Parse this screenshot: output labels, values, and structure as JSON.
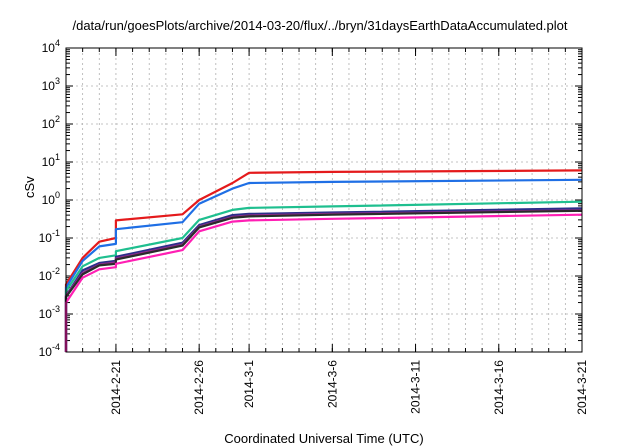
{
  "chart_data": {
    "type": "line",
    "title": "/data/run/goesPlots/archive/2014-03-20/flux/../bryn/31daysEarthDataAccumulated.plot",
    "xlabel": "Coordinated Universal Time (UTC)",
    "ylabel": "cSv",
    "yscale": "log",
    "ylim": [
      0.0001,
      10000
    ],
    "yticks": [
      {
        "base": "10",
        "exp": "-4",
        "value": 0.0001
      },
      {
        "base": "10",
        "exp": "-3",
        "value": 0.001
      },
      {
        "base": "10",
        "exp": "-2",
        "value": 0.01
      },
      {
        "base": "10",
        "exp": "-1",
        "value": 0.1
      },
      {
        "base": "10",
        "exp": "0",
        "value": 1
      },
      {
        "base": "10",
        "exp": "1",
        "value": 10
      },
      {
        "base": "10",
        "exp": "2",
        "value": 100
      },
      {
        "base": "10",
        "exp": "3",
        "value": 1000
      },
      {
        "base": "10",
        "exp": "4",
        "value": 10000
      }
    ],
    "xlim": [
      "2014-02-18",
      "2014-03-21"
    ],
    "xticks": [
      "2014-2-21",
      "2014-2-26",
      "2014-3-1",
      "2014-3-6",
      "2014-3-11",
      "2014-3-16",
      "2014-3-21"
    ],
    "grid": true,
    "series": [
      {
        "color": "#e41a1c",
        "x": [
          "2014-02-18",
          "2014-02-18",
          "2014-02-19",
          "2014-02-20",
          "2014-02-21",
          "2014-02-21",
          "2014-02-25",
          "2014-02-26",
          "2014-02-28",
          "2014-03-01",
          "2014-03-06",
          "2014-03-21"
        ],
        "values": [
          0.0001,
          0.006,
          0.03,
          0.08,
          0.1,
          0.29,
          0.42,
          1.0,
          2.8,
          5.2,
          5.5,
          6.0
        ]
      },
      {
        "color": "#1f6fe5",
        "x": [
          "2014-02-18",
          "2014-02-18",
          "2014-02-19",
          "2014-02-20",
          "2014-02-21",
          "2014-02-21",
          "2014-02-25",
          "2014-02-26",
          "2014-02-28",
          "2014-03-01",
          "2014-03-06",
          "2014-03-21"
        ],
        "values": [
          0.0001,
          0.005,
          0.025,
          0.06,
          0.07,
          0.17,
          0.26,
          0.8,
          2.0,
          2.8,
          3.0,
          3.4
        ]
      },
      {
        "color": "#1fbf8f",
        "x": [
          "2014-02-18",
          "2014-02-18",
          "2014-02-19",
          "2014-02-20",
          "2014-02-21",
          "2014-02-21",
          "2014-02-25",
          "2014-02-26",
          "2014-02-28",
          "2014-03-01",
          "2014-03-06",
          "2014-03-21"
        ],
        "values": [
          0.0001,
          0.004,
          0.018,
          0.03,
          0.035,
          0.045,
          0.1,
          0.3,
          0.55,
          0.62,
          0.68,
          0.9
        ]
      },
      {
        "color": "#2a2f8a",
        "x": [
          "2014-02-18",
          "2014-02-18",
          "2014-02-19",
          "2014-02-20",
          "2014-02-21",
          "2014-02-21",
          "2014-02-25",
          "2014-02-26",
          "2014-02-28",
          "2014-03-01",
          "2014-03-06",
          "2014-03-21"
        ],
        "values": [
          0.0001,
          0.003,
          0.014,
          0.022,
          0.025,
          0.032,
          0.075,
          0.22,
          0.4,
          0.43,
          0.47,
          0.6
        ]
      },
      {
        "color": "#8e2a8a",
        "x": [
          "2014-02-18",
          "2014-02-18",
          "2014-02-19",
          "2014-02-20",
          "2014-02-21",
          "2014-02-21",
          "2014-02-25",
          "2014-02-26",
          "2014-02-28",
          "2014-03-01",
          "2014-03-06",
          "2014-03-21"
        ],
        "values": [
          0.0001,
          0.003,
          0.012,
          0.02,
          0.023,
          0.029,
          0.068,
          0.2,
          0.36,
          0.39,
          0.43,
          0.54
        ]
      },
      {
        "color": "#2b2b2b",
        "x": [
          "2014-02-18",
          "2014-02-18",
          "2014-02-19",
          "2014-02-20",
          "2014-02-21",
          "2014-02-21",
          "2014-02-25",
          "2014-02-26",
          "2014-02-28",
          "2014-03-01",
          "2014-03-06",
          "2014-03-21"
        ],
        "values": [
          0.0001,
          0.0028,
          0.011,
          0.019,
          0.021,
          0.027,
          0.063,
          0.19,
          0.34,
          0.37,
          0.41,
          0.52
        ]
      },
      {
        "color": "#ff1fb4",
        "x": [
          "2014-02-18",
          "2014-02-18",
          "2014-02-19",
          "2014-02-20",
          "2014-02-21",
          "2014-02-21",
          "2014-02-25",
          "2014-02-26",
          "2014-02-28",
          "2014-03-01",
          "2014-03-06",
          "2014-03-21"
        ],
        "values": [
          0.0001,
          0.002,
          0.009,
          0.015,
          0.017,
          0.021,
          0.048,
          0.15,
          0.27,
          0.29,
          0.32,
          0.41
        ]
      }
    ]
  }
}
